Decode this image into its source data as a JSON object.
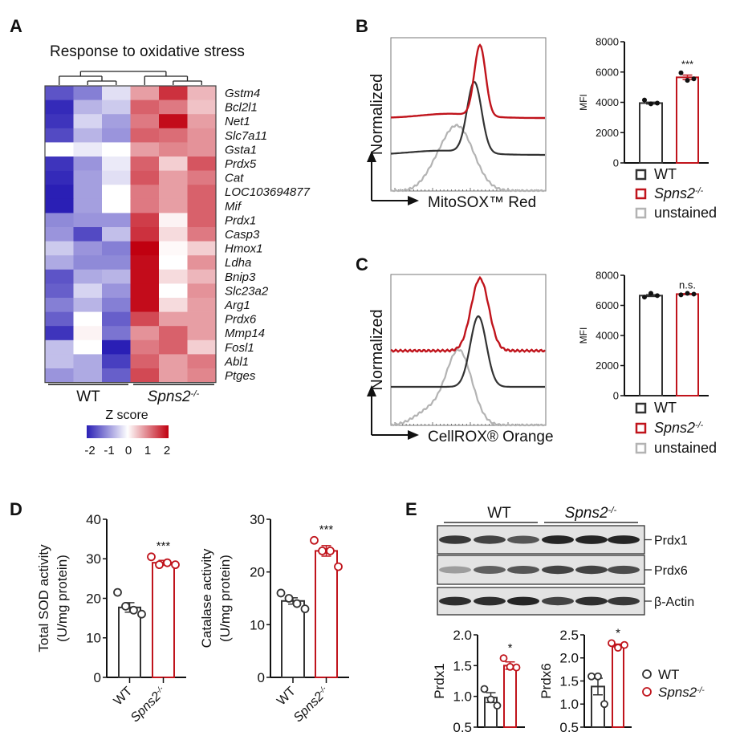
{
  "panels": {
    "A": "A",
    "B": "B",
    "C": "C",
    "D": "D",
    "E": "E"
  },
  "genotypes": {
    "wt": "WT",
    "ko_base": "Spns2",
    "ko_sup": "-/-",
    "unstained": "unstained"
  },
  "colors": {
    "wt": "#333333",
    "ko": "#c0141c",
    "unstained": "#b3b3b3",
    "low": "#2a1fb5",
    "high": "#c00010"
  },
  "chart_data": [
    {
      "id": "A",
      "type": "heatmap",
      "title": "Response to oxidative stress",
      "columns": [
        "WT",
        "WT",
        "WT",
        "Spns2-/-",
        "Spns2-/-",
        "Spns2-/-"
      ],
      "rows": [
        "Gstm4",
        "Bcl2l1",
        "Net1",
        "Slc7a11",
        "Gsta1",
        "Prdx5",
        "Cat",
        "LOC103694877",
        "Mif",
        "Prdx1",
        "Casp3",
        "Hmox1",
        "Ldha",
        "Bnip3",
        "Slc23a2",
        "Arg1",
        "Prdx6",
        "Mmp14",
        "Fosl1",
        "Abl1",
        "Ptges"
      ],
      "values": [
        [
          -1.6,
          -1.2,
          -0.3,
          0.8,
          1.7,
          0.6
        ],
        [
          -2.0,
          -0.7,
          -0.5,
          1.3,
          1.1,
          0.5
        ],
        [
          -1.9,
          -0.4,
          -0.9,
          1.1,
          2.0,
          0.8
        ],
        [
          -1.7,
          -0.7,
          -1.0,
          1.3,
          1.2,
          0.9
        ],
        [
          0.0,
          -0.2,
          0.0,
          0.8,
          1.0,
          0.9
        ],
        [
          -1.9,
          -1.0,
          -0.2,
          1.3,
          0.4,
          1.4
        ],
        [
          -2.0,
          -0.9,
          -0.3,
          1.4,
          0.8,
          1.1
        ],
        [
          -2.1,
          -0.9,
          0.0,
          1.1,
          0.8,
          1.3
        ],
        [
          -2.1,
          -0.9,
          0.0,
          1.1,
          0.8,
          1.3
        ],
        [
          -1.1,
          -1.0,
          -1.0,
          1.6,
          0.1,
          1.3
        ],
        [
          -1.0,
          -1.7,
          -0.6,
          1.7,
          0.3,
          1.1
        ],
        [
          -0.5,
          -1.0,
          -1.2,
          2.1,
          0.05,
          0.4
        ],
        [
          -0.8,
          -1.1,
          -1.1,
          2.0,
          0.0,
          0.9
        ],
        [
          -1.6,
          -0.8,
          -0.7,
          2.0,
          0.3,
          0.6
        ],
        [
          -1.5,
          -0.4,
          -1.0,
          2.0,
          0.0,
          0.9
        ],
        [
          -1.2,
          -0.7,
          -1.2,
          2.0,
          0.3,
          0.8
        ],
        [
          -1.5,
          0.0,
          -1.5,
          1.5,
          0.8,
          0.8
        ],
        [
          -1.9,
          0.1,
          -1.3,
          0.9,
          1.3,
          0.8
        ],
        [
          -0.6,
          0.0,
          -2.1,
          1.1,
          1.3,
          0.4
        ],
        [
          -0.6,
          -0.8,
          -1.8,
          1.3,
          0.8,
          1.1
        ],
        [
          -1.0,
          -0.8,
          -1.5,
          1.5,
          0.8,
          1.0
        ]
      ],
      "colorbar": {
        "label": "Z score",
        "range": [
          -2,
          2
        ],
        "ticks": [
          "-2",
          "-1",
          "0",
          "1",
          "2"
        ]
      }
    },
    {
      "id": "B_hist",
      "type": "histogram",
      "ylabel": "Normalized",
      "xlabel": "MitoSOX™ Red",
      "series": [
        "Spns2-/-",
        "WT",
        "unstained"
      ]
    },
    {
      "id": "B_bar",
      "type": "bar",
      "ylabel": "MFI",
      "ylim": [
        0,
        8000
      ],
      "ticks": [
        "0",
        "2000",
        "4000",
        "6000",
        "8000"
      ],
      "significance": "***",
      "groups": [
        {
          "name": "WT",
          "mean": 3950,
          "sem": 60,
          "points": [
            4150,
            3900,
            3950
          ]
        },
        {
          "name": "Spns2-/-",
          "mean": 5650,
          "sem": 150,
          "points": [
            5950,
            5450,
            5550
          ]
        }
      ]
    },
    {
      "id": "C_hist",
      "type": "histogram",
      "ylabel": "Normalized",
      "xlabel": "CellROX® Orange",
      "series": [
        "Spns2-/-",
        "WT",
        "unstained"
      ]
    },
    {
      "id": "C_bar",
      "type": "bar",
      "ylabel": "MFI",
      "ylim": [
        0,
        8000
      ],
      "ticks": [
        "0",
        "2000",
        "4000",
        "6000",
        "8000"
      ],
      "significance": "n.s.",
      "groups": [
        {
          "name": "WT",
          "mean": 6650,
          "sem": 60,
          "points": [
            6550,
            6800,
            6650
          ]
        },
        {
          "name": "Spns2-/-",
          "mean": 6750,
          "sem": 30,
          "points": [
            6700,
            6800,
            6750
          ]
        }
      ]
    },
    {
      "id": "D_sod",
      "type": "bar",
      "ylabel": "Total SOD activity",
      "ylabel2": "(U/mg protein)",
      "ylim": [
        0,
        40
      ],
      "ticks": [
        "0",
        "10",
        "20",
        "30",
        "40"
      ],
      "significance": "***",
      "groups": [
        {
          "name": "WT",
          "mean": 17.7,
          "sem": 1.2,
          "points": [
            21.5,
            18,
            17,
            16
          ]
        },
        {
          "name": "Spns2-/-",
          "mean": 29,
          "sem": 0.6,
          "points": [
            30.5,
            28.5,
            29,
            28.5
          ]
        }
      ]
    },
    {
      "id": "D_cat",
      "type": "bar",
      "ylabel": "Catalase activity",
      "ylabel2": "(U/mg protein)",
      "ylim": [
        0,
        30
      ],
      "ticks": [
        "0",
        "10",
        "20",
        "30"
      ],
      "significance": "***",
      "groups": [
        {
          "name": "WT",
          "mean": 14.5,
          "sem": 0.6,
          "points": [
            16,
            15,
            14,
            13
          ]
        },
        {
          "name": "Spns2-/-",
          "mean": 24,
          "sem": 1.0,
          "points": [
            26,
            24,
            24,
            21
          ]
        }
      ]
    },
    {
      "id": "E_prdx1",
      "type": "bar",
      "ylabel": "Prdx1",
      "ylim": [
        0.5,
        2.0
      ],
      "ticks": [
        "0.5",
        "1.0",
        "1.5",
        "2.0"
      ],
      "significance": "*",
      "groups": [
        {
          "name": "WT",
          "mean": 0.98,
          "sem": 0.08,
          "points": [
            1.12,
            0.95,
            0.85
          ]
        },
        {
          "name": "Spns2-/-",
          "mean": 1.5,
          "sem": 0.06,
          "points": [
            1.62,
            1.48,
            1.47
          ]
        }
      ]
    },
    {
      "id": "E_prdx6",
      "type": "bar",
      "ylabel": "Prdx6",
      "ylim": [
        0.5,
        2.5
      ],
      "ticks": [
        "0.5",
        "1.0",
        "1.5",
        "2.0",
        "2.5"
      ],
      "significance": "*",
      "groups": [
        {
          "name": "WT",
          "mean": 1.38,
          "sem": 0.18,
          "points": [
            1.6,
            1.6,
            1.0
          ]
        },
        {
          "name": "Spns2-/-",
          "mean": 2.27,
          "sem": 0.03,
          "points": [
            2.32,
            2.22,
            2.28
          ]
        }
      ]
    }
  ],
  "blot": {
    "labels": [
      "Prdx1",
      "Prdx6",
      "β-Actin"
    ],
    "intensity": [
      [
        0.85,
        0.8,
        0.7,
        0.95,
        0.95,
        0.95
      ],
      [
        0.35,
        0.65,
        0.7,
        0.8,
        0.8,
        0.75
      ],
      [
        0.9,
        0.9,
        0.95,
        0.8,
        0.9,
        0.85
      ]
    ]
  }
}
